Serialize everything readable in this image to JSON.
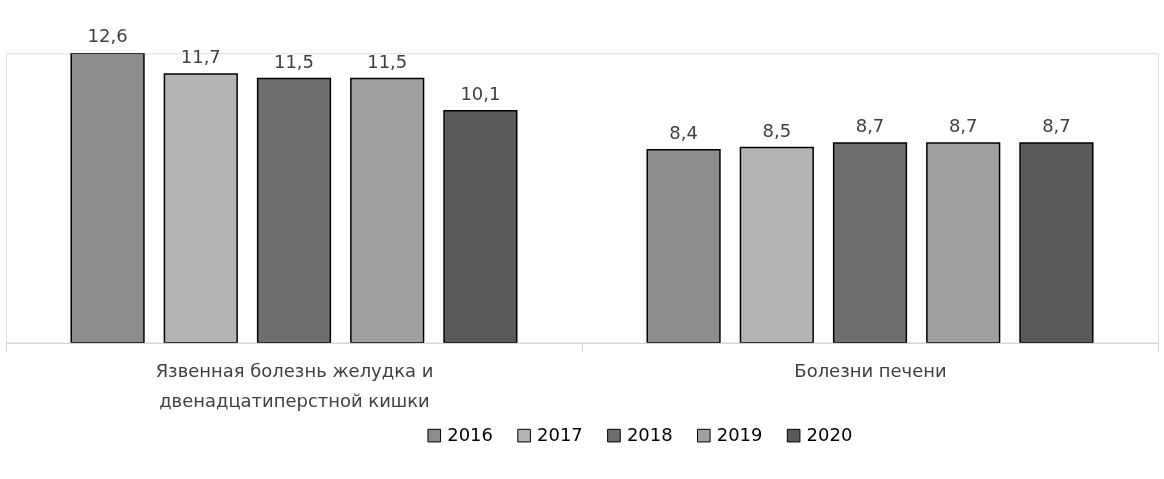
{
  "chart_data": {
    "type": "bar",
    "categories": [
      "Язвенная  болезнь желудка и\nдвенадцатиперстной кишки",
      "Болезни печени"
    ],
    "series": [
      {
        "name": "2016",
        "color": "#8c8c8c",
        "values": [
          12.6,
          8.4
        ],
        "value_labels": [
          "12,6",
          "8,4"
        ]
      },
      {
        "name": "2017",
        "color": "#b4b4b4",
        "values": [
          11.7,
          8.5
        ],
        "value_labels": [
          "11,7",
          "8,5"
        ]
      },
      {
        "name": "2018",
        "color": "#6e6e6e",
        "values": [
          11.5,
          8.7
        ],
        "value_labels": [
          "11,5",
          "8,7"
        ]
      },
      {
        "name": "2019",
        "color": "#a0a0a0",
        "values": [
          11.5,
          8.7
        ],
        "value_labels": [
          "11,5",
          "8,7"
        ]
      },
      {
        "name": "2020",
        "color": "#5a5a5a",
        "values": [
          10.1,
          8.7
        ],
        "value_labels": [
          "10,1",
          "8,7"
        ]
      }
    ],
    "legend": "bottom",
    "grid": false,
    "tick_labels": "x"
  }
}
